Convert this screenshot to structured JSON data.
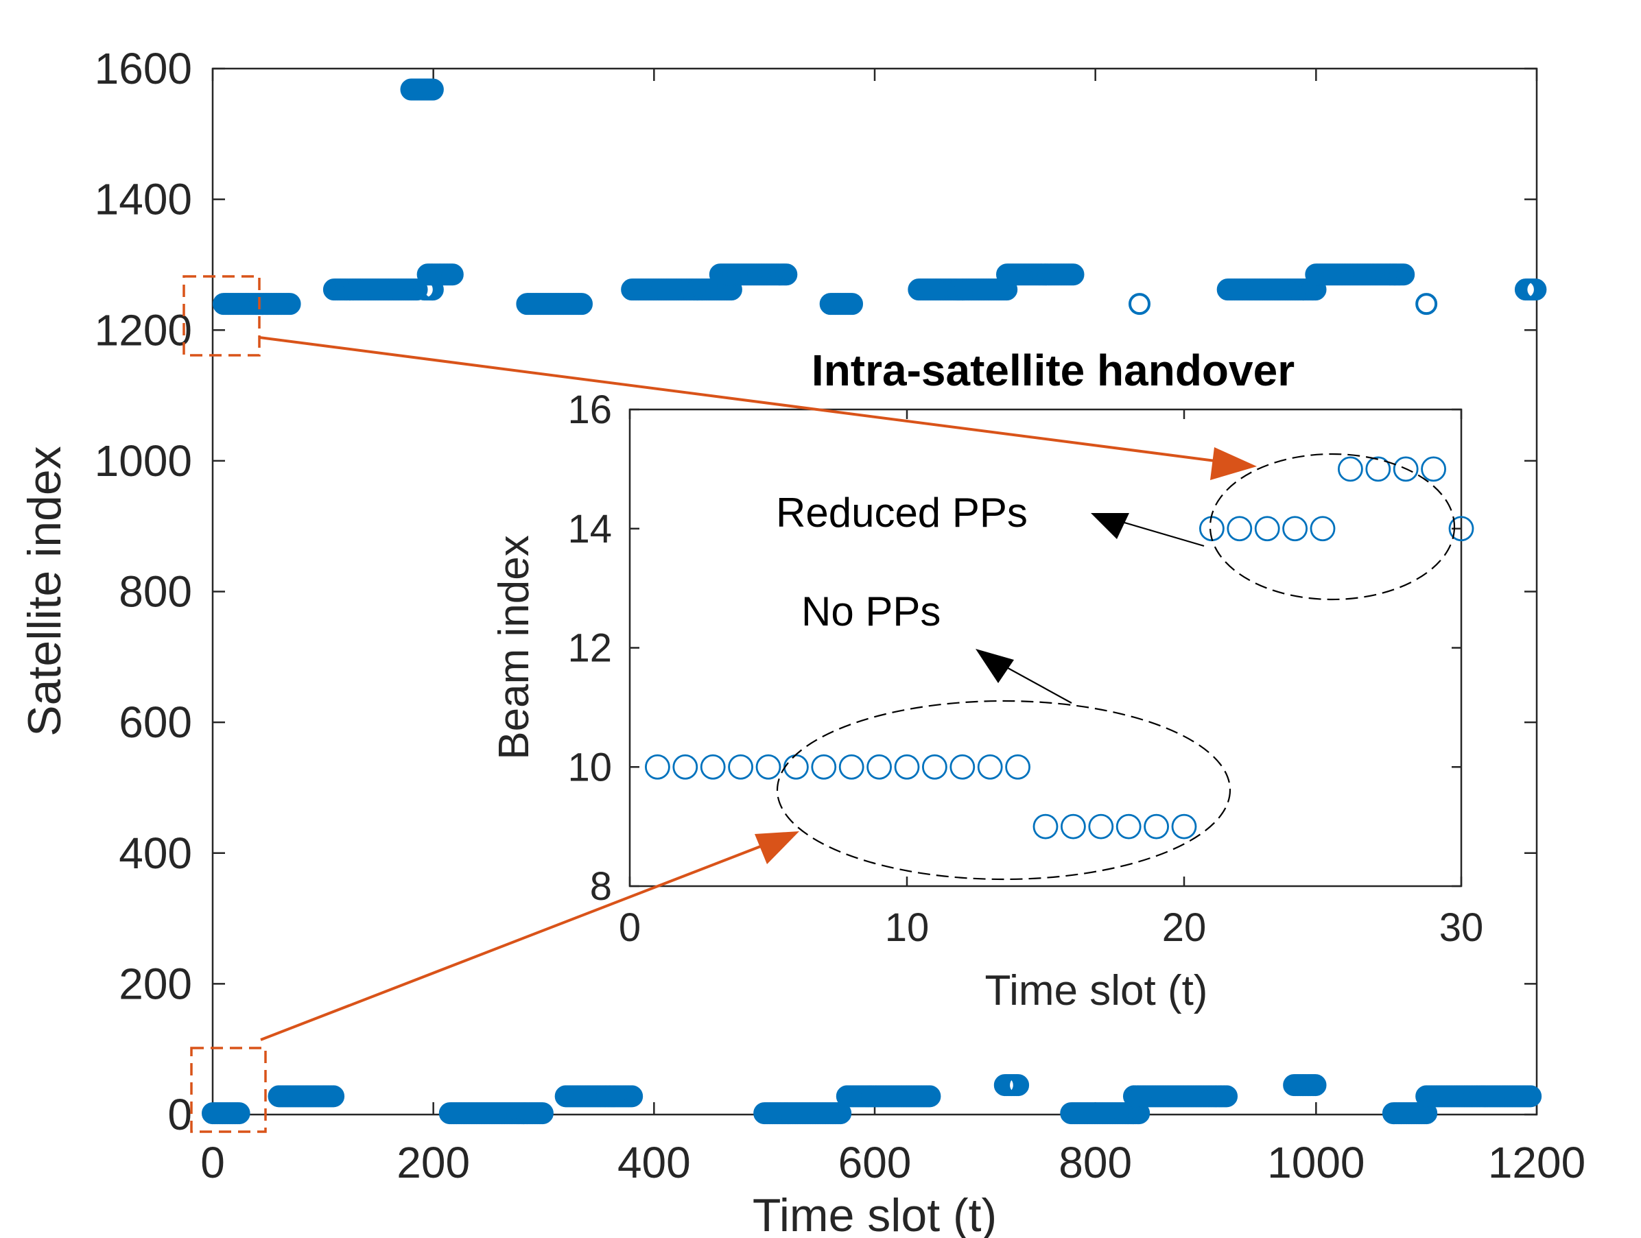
{
  "colors": {
    "marker": "#0072bd",
    "arrow_orange": "#d95319",
    "axis": "#262626",
    "annotation": "#000000"
  },
  "chart_data": [
    {
      "type": "scatter",
      "marker": "open-circle",
      "xlabel": "Time slot (t)",
      "ylabel": "Satellite index",
      "xlim": [
        0,
        1200
      ],
      "ylim": [
        0,
        1600
      ],
      "xticks": [
        "0",
        "200",
        "400",
        "600",
        "800",
        "1000",
        "1200"
      ],
      "yticks": [
        "0",
        "200",
        "400",
        "600",
        "800",
        "1000",
        "1200",
        "1400",
        "1600"
      ],
      "series": [
        {
          "segments": [
            {
              "x": [
                0,
                25
              ],
              "y": 2
            },
            {
              "x": [
                60,
                110
              ],
              "y": 28
            },
            {
              "x": [
                215,
                300
              ],
              "y": 2
            },
            {
              "x": [
                320,
                380
              ],
              "y": 28
            },
            {
              "x": [
                500,
                570
              ],
              "y": 2
            },
            {
              "x": [
                575,
                650
              ],
              "y": 28
            },
            {
              "x": [
                718,
                730
              ],
              "y": 45
            },
            {
              "x": [
                778,
                840
              ],
              "y": 2
            },
            {
              "x": [
                835,
                920
              ],
              "y": 28
            },
            {
              "x": [
                980,
                1000
              ],
              "y": 45
            },
            {
              "x": [
                1070,
                1100
              ],
              "y": 2
            },
            {
              "x": [
                1100,
                1195
              ],
              "y": 28
            },
            {
              "x": [
                10,
                70
              ],
              "y": 1240
            },
            {
              "x": [
                110,
                185
              ],
              "y": 1262
            },
            {
              "x": [
                180,
                200
              ],
              "y": 1568
            },
            {
              "x": [
                192,
                200
              ],
              "y": 1262
            },
            {
              "x": [
                195,
                218
              ],
              "y": 1285
            },
            {
              "x": [
                285,
                335
              ],
              "y": 1240
            },
            {
              "x": [
                380,
                470
              ],
              "y": 1262
            },
            {
              "x": [
                460,
                520
              ],
              "y": 1285
            },
            {
              "x": [
                560,
                580
              ],
              "y": 1240
            },
            {
              "x": [
                640,
                720
              ],
              "y": 1262
            },
            {
              "x": [
                720,
                780
              ],
              "y": 1285
            },
            {
              "x": [
                840,
                840
              ],
              "y": 1240
            },
            {
              "x": [
                920,
                1000
              ],
              "y": 1262
            },
            {
              "x": [
                1000,
                1080
              ],
              "y": 1285
            },
            {
              "x": [
                1100,
                1100
              ],
              "y": 1240
            },
            {
              "x": [
                1190,
                1200
              ],
              "y": 1262
            }
          ]
        }
      ]
    },
    {
      "type": "scatter",
      "marker": "open-circle",
      "title": "Intra-satellite handover",
      "xlabel": "Time slot (t)",
      "ylabel": "Beam index",
      "xlim": [
        0,
        30
      ],
      "ylim": [
        8,
        16
      ],
      "xticks": [
        "0",
        "10",
        "20",
        "30"
      ],
      "yticks": [
        "8",
        "10",
        "12",
        "14",
        "16"
      ],
      "x": [
        1,
        2,
        3,
        4,
        5,
        6,
        7,
        8,
        9,
        10,
        11,
        12,
        13,
        14,
        15,
        16,
        17,
        18,
        19,
        20,
        21,
        22,
        23,
        24,
        25,
        26,
        27,
        28,
        29,
        30
      ],
      "y": [
        10,
        10,
        10,
        10,
        10,
        10,
        10,
        10,
        10,
        10,
        10,
        10,
        10,
        10,
        9,
        9,
        9,
        9,
        9,
        9,
        14,
        14,
        14,
        14,
        14,
        15,
        15,
        15,
        15,
        14
      ],
      "annotations": [
        {
          "text": "Reduced PPs"
        },
        {
          "text": "No PPs"
        }
      ]
    }
  ]
}
